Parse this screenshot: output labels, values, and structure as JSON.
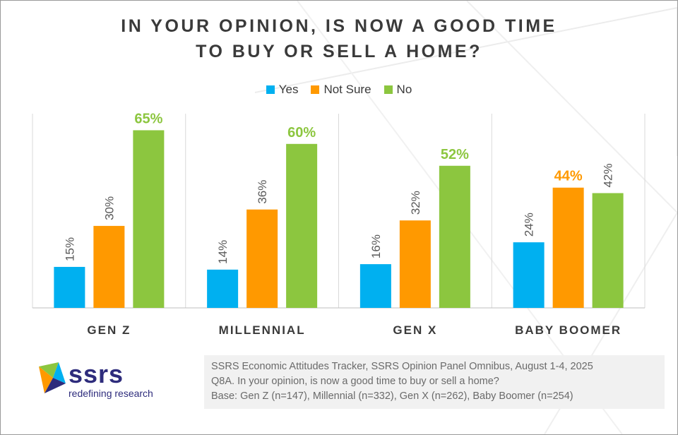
{
  "title": {
    "line1": "IN YOUR OPINION, IS NOW A GOOD TIME",
    "line2": "TO BUY OR SELL A HOME?"
  },
  "legend": [
    {
      "label": "Yes",
      "color": "#00b0f0"
    },
    {
      "label": "Not Sure",
      "color": "#ff9900"
    },
    {
      "label": "No",
      "color": "#8cc63f"
    }
  ],
  "chart_data": {
    "type": "bar",
    "title": "IN YOUR OPINION, IS NOW A GOOD TIME TO BUY OR SELL A HOME?",
    "categories": [
      "GEN Z",
      "MILLENNIAL",
      "GEN X",
      "BABY BOOMER"
    ],
    "series": [
      {
        "name": "Yes",
        "color": "#00b0f0",
        "values": [
          15,
          14,
          16,
          24
        ],
        "labels": [
          "15%",
          "14%",
          "16%",
          "24%"
        ]
      },
      {
        "name": "Not Sure",
        "color": "#ff9900",
        "values": [
          30,
          36,
          32,
          44
        ],
        "labels": [
          "30%",
          "36%",
          "32%",
          "44%"
        ]
      },
      {
        "name": "No",
        "color": "#8cc63f",
        "values": [
          65,
          60,
          52,
          42
        ],
        "labels": [
          "65%",
          "60%",
          "52%",
          "42%"
        ]
      }
    ],
    "ylim": [
      0,
      65
    ],
    "xlabel": "",
    "ylabel": "",
    "legend_position": "top-center"
  },
  "logo": {
    "name": "ssrs",
    "tagline": "redefining research"
  },
  "source": {
    "line1": "SSRS Economic Attitudes Tracker, SSRS Opinion Panel Omnibus, August 1-4, 2025",
    "line2": "Q8A. In your opinion, is now a good time to buy or sell a home?",
    "line3": "Base: Gen Z (n=147), Millennial (n=332), Gen X (n=262), Baby Boomer (n=254)"
  }
}
